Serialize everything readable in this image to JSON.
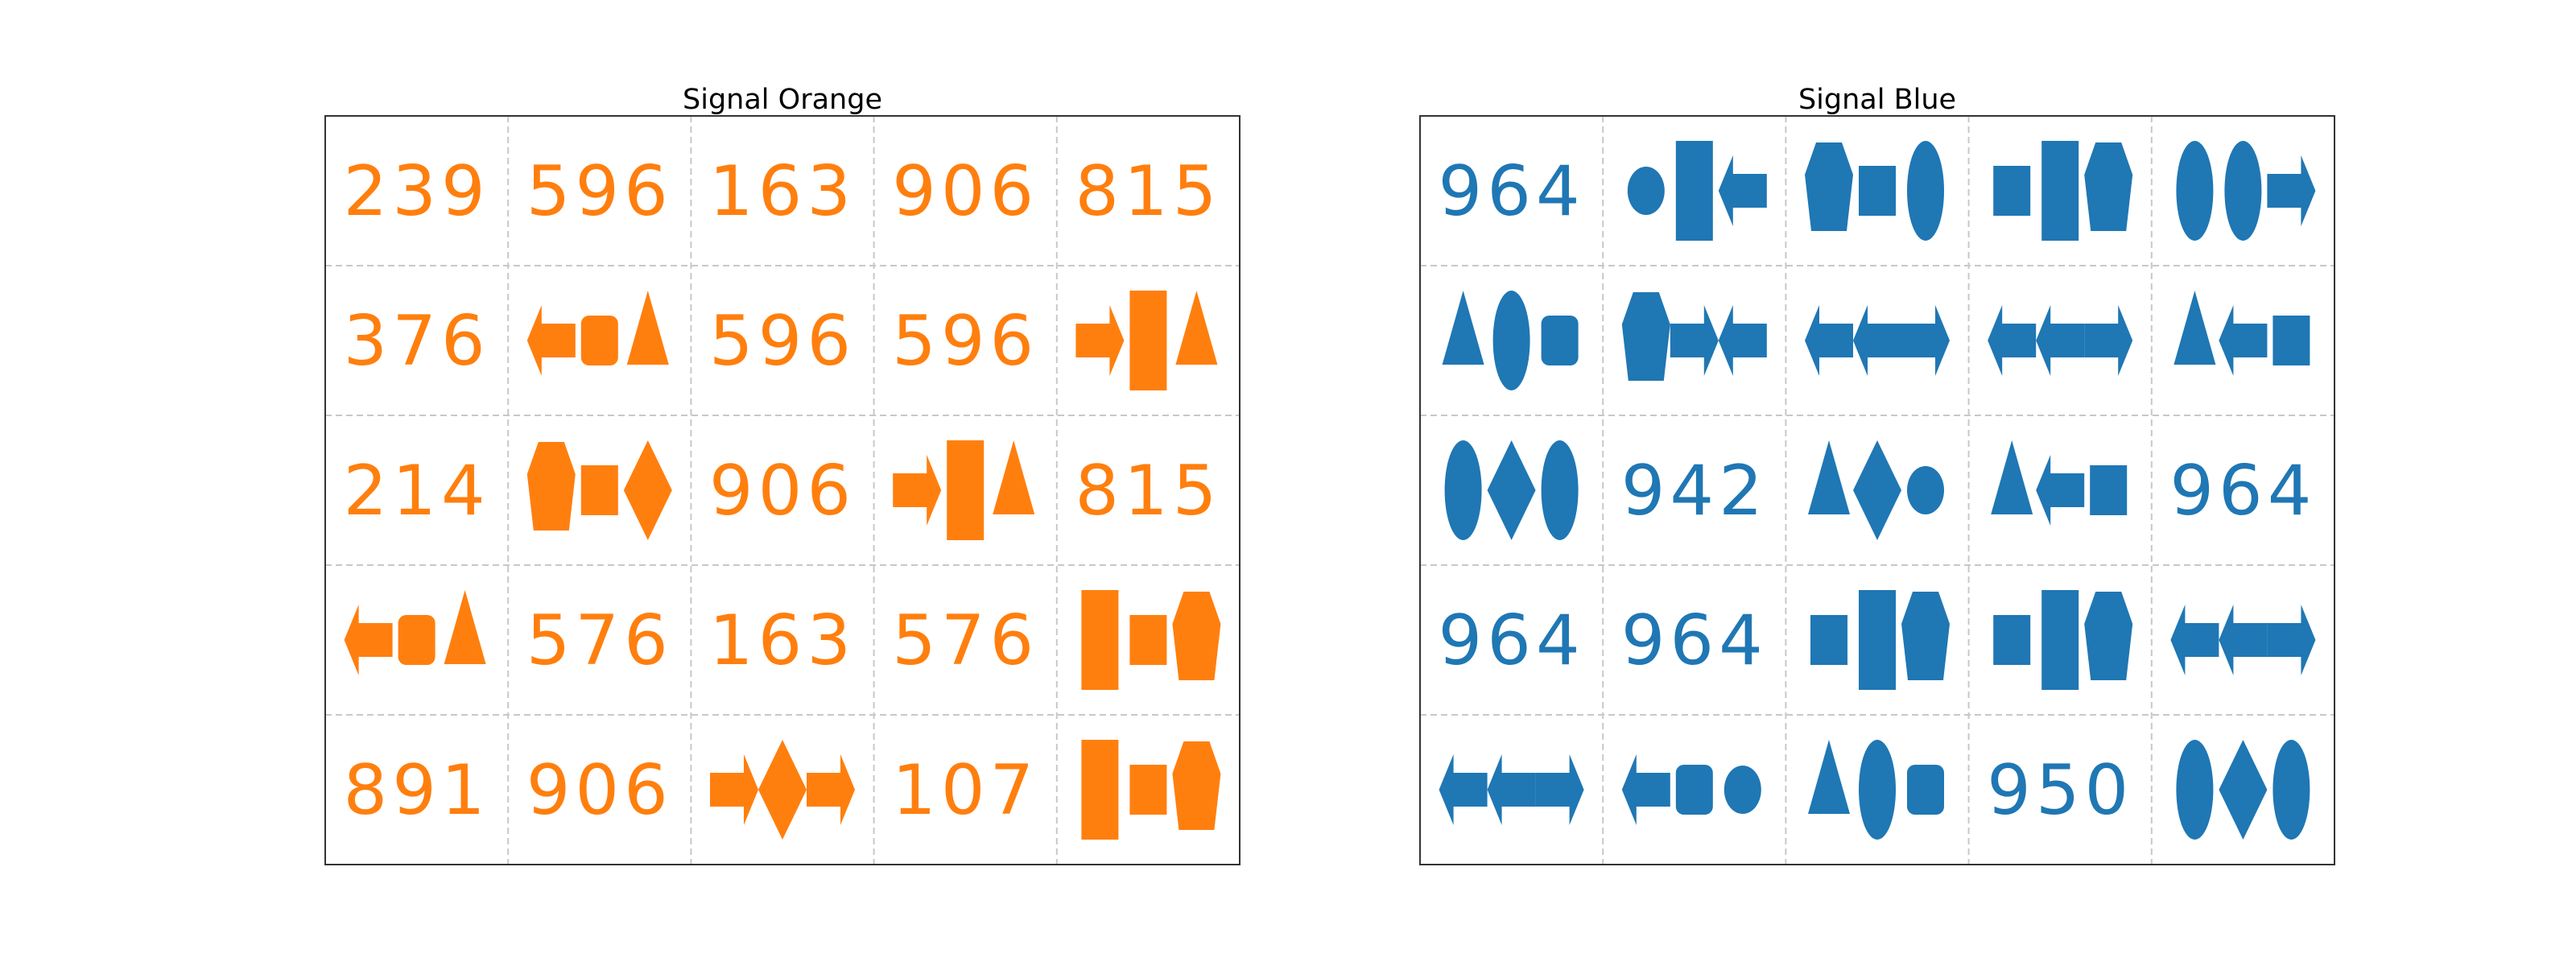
{
  "panels": [
    {
      "title": "Signal Orange",
      "color": "#ff7f0e",
      "cells": [
        [
          {
            "num": "239"
          },
          {
            "num": "596"
          },
          {
            "num": "163"
          },
          {
            "num": "906"
          },
          {
            "num": "815"
          }
        ],
        [
          {
            "num": "376"
          },
          {
            "shapes": [
              "arrow-left",
              "rounded-square",
              "triangle"
            ]
          },
          {
            "num": "596"
          },
          {
            "num": "596"
          },
          {
            "shapes": [
              "arrow-right",
              "tall-rect",
              "triangle"
            ]
          }
        ],
        [
          {
            "num": "214"
          },
          {
            "shapes": [
              "pentagon",
              "square",
              "diamond"
            ]
          },
          {
            "num": "906"
          },
          {
            "shapes": [
              "arrow-right",
              "tall-rect",
              "triangle"
            ]
          },
          {
            "num": "815"
          }
        ],
        [
          {
            "shapes": [
              "arrow-left",
              "rounded-square",
              "triangle"
            ]
          },
          {
            "num": "576"
          },
          {
            "num": "163"
          },
          {
            "num": "576"
          },
          {
            "shapes": [
              "tall-rect",
              "square",
              "pentagon"
            ]
          }
        ],
        [
          {
            "num": "891"
          },
          {
            "num": "906"
          },
          {
            "shapes": [
              "arrow-right",
              "diamond",
              "arrow-right"
            ]
          },
          {
            "num": "107"
          },
          {
            "shapes": [
              "tall-rect",
              "square",
              "pentagon"
            ]
          }
        ]
      ]
    },
    {
      "title": "Signal Blue",
      "color": "#1f77b4",
      "cells": [
        [
          {
            "num": "964"
          },
          {
            "shapes": [
              "circle",
              "tall-rect",
              "arrow-left"
            ]
          },
          {
            "shapes": [
              "pentagon",
              "square",
              "ellipse"
            ]
          },
          {
            "shapes": [
              "square",
              "tall-rect",
              "pentagon"
            ]
          },
          {
            "shapes": [
              "ellipse",
              "ellipse",
              "arrow-right"
            ]
          }
        ],
        [
          {
            "shapes": [
              "triangle",
              "ellipse",
              "rounded-square"
            ]
          },
          {
            "shapes": [
              "pentagon",
              "arrow-right",
              "arrow-left"
            ]
          },
          {
            "shapes": [
              "arrow-left",
              "arrow-left",
              "arrow-right"
            ]
          },
          {
            "shapes": [
              "arrow-left",
              "arrow-left",
              "arrow-right"
            ]
          },
          {
            "shapes": [
              "triangle",
              "arrow-left",
              "square"
            ]
          }
        ],
        [
          {
            "shapes": [
              "ellipse",
              "diamond",
              "ellipse"
            ]
          },
          {
            "num": "942"
          },
          {
            "shapes": [
              "triangle",
              "diamond",
              "circle"
            ]
          },
          {
            "shapes": [
              "triangle",
              "arrow-left",
              "square"
            ]
          },
          {
            "num": "964"
          }
        ],
        [
          {
            "num": "964"
          },
          {
            "num": "964"
          },
          {
            "shapes": [
              "square",
              "tall-rect",
              "pentagon"
            ]
          },
          {
            "shapes": [
              "square",
              "tall-rect",
              "pentagon"
            ]
          },
          {
            "shapes": [
              "arrow-left",
              "arrow-left",
              "arrow-right"
            ]
          }
        ],
        [
          {
            "shapes": [
              "arrow-left",
              "arrow-left",
              "arrow-right"
            ]
          },
          {
            "shapes": [
              "arrow-left",
              "rounded-square",
              "circle"
            ]
          },
          {
            "shapes": [
              "triangle",
              "ellipse",
              "rounded-square"
            ]
          },
          {
            "num": "950"
          },
          {
            "shapes": [
              "ellipse",
              "diamond",
              "ellipse"
            ]
          }
        ]
      ]
    }
  ]
}
